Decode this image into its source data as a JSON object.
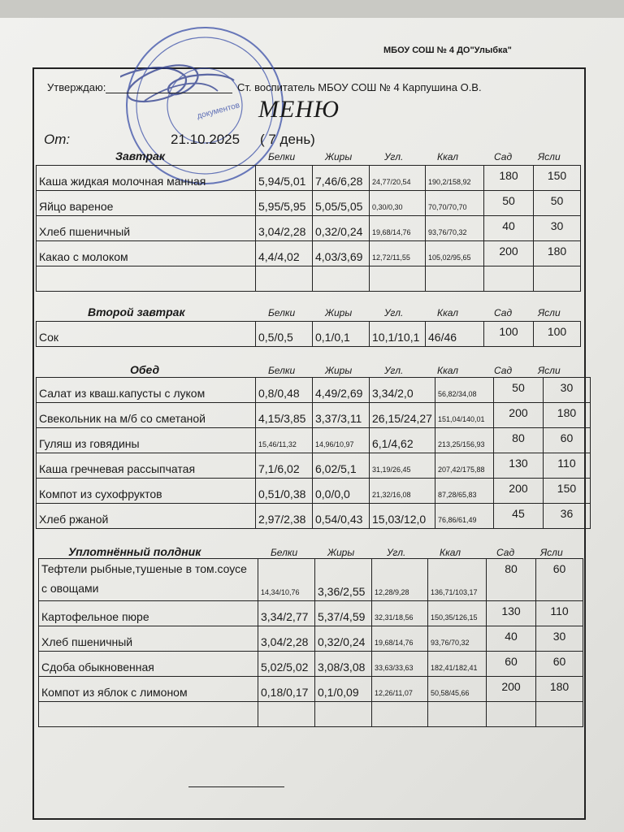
{
  "header": {
    "organization": "МБОУ СОШ № 4 ДО\"Улыбка\"",
    "approve_label": "Утверждаю:",
    "approver": "Ст. воспитатель МБОУ СОШ № 4  Карпушина О.В.",
    "title": "МЕНЮ",
    "from_label": "От:",
    "date": "21.10.2025",
    "day": "(   7  день)"
  },
  "stamp": {
    "text": "документов",
    "color": "#3a4fa8"
  },
  "columns": [
    "Белки",
    "Жиры",
    "Угл.",
    "Ккал",
    "Сад",
    "Ясли"
  ],
  "sections": [
    {
      "name": "Завтрак",
      "rows": [
        [
          "Каша жидкая молочная манная",
          "5,94/5,01",
          "7,46/6,28",
          "24,77/20,54",
          "190,2/158,92",
          "180",
          "150"
        ],
        [
          "Яйцо вареное",
          "5,95/5,95",
          "5,05/5,05",
          "0,30/0,30",
          "70,70/70,70",
          "50",
          "50"
        ],
        [
          "Хлеб пшеничный",
          "3,04/2,28",
          "0,32/0,24",
          "19,68/14,76",
          "93,76/70,32",
          "40",
          "30"
        ],
        [
          "Какао с молоком",
          "4,4/4,02",
          "4,03/3,69",
          "12,72/11,55",
          "105,02/95,65",
          "200",
          "180"
        ],
        [
          "",
          "",
          "",
          "",
          "",
          "",
          ""
        ]
      ]
    },
    {
      "name": "Второй завтрак",
      "rows": [
        [
          "Сок",
          "0,5/0,5",
          "0,1/0,1",
          "10,1/10,1",
          "46/46",
          "100",
          "100"
        ]
      ]
    },
    {
      "name": "Обед",
      "rows": [
        [
          "Салат из кваш.капусты с луком",
          "0,8/0,48",
          "4,49/2,69",
          "3,34/2,0",
          "56,82/34,08",
          "50",
          "30"
        ],
        [
          "Свекольник на м/б со сметаной",
          "4,15/3,85",
          "3,37/3,11",
          "26,15/24,27",
          "151,04/140,01",
          "200",
          "180"
        ],
        [
          "Гуляш из говядины",
          "15,46/11,32",
          "14,96/10,97",
          "6,1/4,62",
          "213,25/156,93",
          "80",
          "60"
        ],
        [
          "Каша гречневая рассыпчатая",
          "7,1/6,02",
          "6,02/5,1",
          "31,19/26,45",
          "207,42/175,88",
          "130",
          "110"
        ],
        [
          "Компот из сухофруктов",
          "0,51/0,38",
          "0,0/0,0",
          "21,32/16,08",
          "87,28/65,83",
          "200",
          "150"
        ],
        [
          "Хлеб ржаной",
          "2,97/2,38",
          "0,54/0,43",
          "15,03/12,0",
          "76,86/61,49",
          "45",
          "36"
        ]
      ]
    },
    {
      "name": "Уплотнённый полдник",
      "rows": [
        [
          "Тефтели рыбные,тушеные в том.соусе с овощами",
          "14,34/10,76",
          "3,36/2,55",
          "12,28/9,28",
          "136,71/103,17",
          "80",
          "60"
        ],
        [
          "Картофельное пюре",
          "3,34/2,77",
          "5,37/4,59",
          "32,31/18,56",
          "150,35/126,15",
          "130",
          "110"
        ],
        [
          "Хлеб пшеничный",
          "3,04/2,28",
          "0,32/0,24",
          "19,68/14,76",
          "93,76/70,32",
          "40",
          "30"
        ],
        [
          "Сдоба обыкновенная",
          "5,02/5,02",
          "3,08/3,08",
          "33,63/33,63",
          "182,41/182,41",
          "60",
          "60"
        ],
        [
          "Компот из яблок с лимоном",
          "0,18/0,17",
          "0,1/0,09",
          "12,26/11,07",
          "50,58/45,66",
          "200",
          "180"
        ],
        [
          "",
          "",
          "",
          "",
          "",
          "",
          ""
        ]
      ]
    }
  ]
}
